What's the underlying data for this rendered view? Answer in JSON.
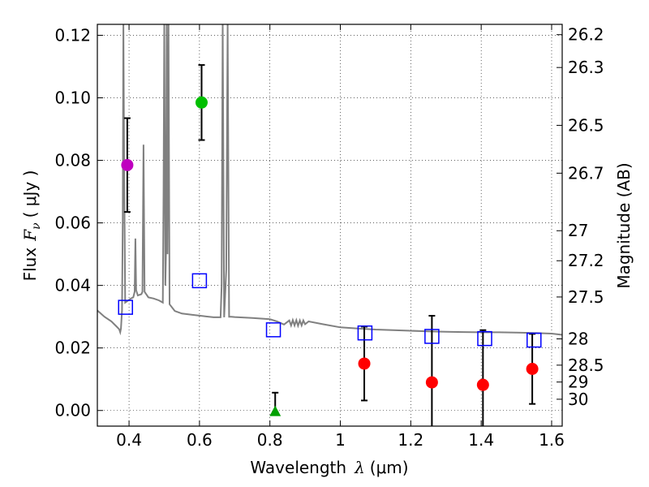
{
  "chart_data": {
    "type": "scatter",
    "xlabel_prefix": "Wavelength",
    "xlabel_symbol": "λ",
    "xlabel_unit": "(μm)",
    "ylabel_prefix": "Flux",
    "ylabel_symbol": "F",
    "ylabel_subscript": "ν",
    "ylabel_unit": "( μJy )",
    "y2label": "Magnitude (AB)",
    "xlim": [
      0.31,
      1.63
    ],
    "ylim": [
      -0.005,
      0.1235
    ],
    "grid": true,
    "x_ticks": [
      {
        "v": 0.4,
        "label": "0.4"
      },
      {
        "v": 0.6,
        "label": "0.6"
      },
      {
        "v": 0.8,
        "label": "0.8"
      },
      {
        "v": 1.0,
        "label": "1"
      },
      {
        "v": 1.2,
        "label": "1.2"
      },
      {
        "v": 1.4,
        "label": "1.4"
      },
      {
        "v": 1.6,
        "label": "1.6"
      }
    ],
    "y_ticks": [
      {
        "v": 0.0,
        "label": "0.00"
      },
      {
        "v": 0.02,
        "label": "0.02"
      },
      {
        "v": 0.04,
        "label": "0.04"
      },
      {
        "v": 0.06,
        "label": "0.06"
      },
      {
        "v": 0.08,
        "label": "0.08"
      },
      {
        "v": 0.1,
        "label": "0.10"
      },
      {
        "v": 0.12,
        "label": "0.12"
      }
    ],
    "mag_ticks": [
      {
        "v": 0.1202,
        "label": "26.2"
      },
      {
        "v": 0.1097,
        "label": "26.3"
      },
      {
        "v": 0.0912,
        "label": "26.5"
      },
      {
        "v": 0.0759,
        "label": "26.7"
      },
      {
        "v": 0.0575,
        "label": "27"
      },
      {
        "v": 0.0479,
        "label": "27.2"
      },
      {
        "v": 0.0363,
        "label": "27.5"
      },
      {
        "v": 0.0229,
        "label": "28"
      },
      {
        "v": 0.0145,
        "label": "28.5"
      },
      {
        "v": 0.0091,
        "label": "29"
      },
      {
        "v": 0.0036,
        "label": "30"
      }
    ],
    "template_color": "#808080",
    "template_spectrum": [
      [
        0.31,
        0.032
      ],
      [
        0.33,
        0.03
      ],
      [
        0.35,
        0.0285
      ],
      [
        0.365,
        0.0268
      ],
      [
        0.372,
        0.026
      ],
      [
        0.375,
        0.025
      ],
      [
        0.377,
        0.0262
      ],
      [
        0.38,
        0.032
      ],
      [
        0.382,
        0.06
      ],
      [
        0.384,
        0.1235
      ],
      [
        0.386,
        0.08
      ],
      [
        0.389,
        0.0345
      ],
      [
        0.395,
        0.035
      ],
      [
        0.405,
        0.0358
      ],
      [
        0.412,
        0.0362
      ],
      [
        0.416,
        0.038
      ],
      [
        0.418,
        0.055
      ],
      [
        0.42,
        0.0385
      ],
      [
        0.425,
        0.0368
      ],
      [
        0.435,
        0.0372
      ],
      [
        0.438,
        0.038
      ],
      [
        0.441,
        0.085
      ],
      [
        0.444,
        0.038
      ],
      [
        0.455,
        0.0362
      ],
      [
        0.47,
        0.0358
      ],
      [
        0.485,
        0.0352
      ],
      [
        0.496,
        0.0345
      ],
      [
        0.498,
        0.07
      ],
      [
        0.5,
        0.1235
      ],
      [
        0.503,
        0.04
      ],
      [
        0.505,
        0.05
      ],
      [
        0.507,
        0.1235
      ],
      [
        0.509,
        0.05
      ],
      [
        0.512,
        0.1235
      ],
      [
        0.515,
        0.034
      ],
      [
        0.53,
        0.0318
      ],
      [
        0.55,
        0.031
      ],
      [
        0.58,
        0.0306
      ],
      [
        0.61,
        0.0302
      ],
      [
        0.64,
        0.0298
      ],
      [
        0.66,
        0.0298
      ],
      [
        0.663,
        0.04
      ],
      [
        0.666,
        0.1235
      ],
      [
        0.67,
        0.0298
      ],
      [
        0.676,
        0.045
      ],
      [
        0.68,
        0.1235
      ],
      [
        0.684,
        0.03
      ],
      [
        0.69,
        0.03
      ],
      [
        0.7,
        0.0299
      ],
      [
        0.75,
        0.0296
      ],
      [
        0.8,
        0.0292
      ],
      [
        0.82,
        0.0285
      ],
      [
        0.84,
        0.0275
      ],
      [
        0.855,
        0.0288
      ],
      [
        0.86,
        0.0272
      ],
      [
        0.865,
        0.0289
      ],
      [
        0.87,
        0.0272
      ],
      [
        0.875,
        0.0289
      ],
      [
        0.88,
        0.0271
      ],
      [
        0.885,
        0.0288
      ],
      [
        0.89,
        0.0272
      ],
      [
        0.895,
        0.0288
      ],
      [
        0.9,
        0.0276
      ],
      [
        0.91,
        0.0285
      ],
      [
        0.95,
        0.0276
      ],
      [
        1.0,
        0.0266
      ],
      [
        1.05,
        0.0262
      ],
      [
        1.1,
        0.0259
      ],
      [
        1.15,
        0.0257
      ],
      [
        1.2,
        0.0255
      ],
      [
        1.25,
        0.0253
      ],
      [
        1.3,
        0.0252
      ],
      [
        1.35,
        0.0251
      ],
      [
        1.4,
        0.025
      ],
      [
        1.45,
        0.025
      ],
      [
        1.5,
        0.0249
      ],
      [
        1.55,
        0.0248
      ],
      [
        1.6,
        0.0246
      ],
      [
        1.63,
        0.0242
      ]
    ],
    "observed": [
      {
        "x": 0.395,
        "y": 0.0785,
        "err": 0.015,
        "color": "#bf00bf"
      },
      {
        "x": 0.606,
        "y": 0.0985,
        "err": 0.012,
        "color": "#00bf00"
      },
      {
        "x": 1.068,
        "y": 0.015,
        "err": 0.0118,
        "color": "#ff0000"
      },
      {
        "x": 1.26,
        "y": 0.009,
        "err": 0.0213,
        "color": "#ff0000"
      },
      {
        "x": 1.405,
        "y": 0.0082,
        "err": 0.0175,
        "color": "#ff0000"
      },
      {
        "x": 1.545,
        "y": 0.0133,
        "err": 0.0112,
        "color": "#ff0000"
      }
    ],
    "upper_limit": {
      "x": 0.815,
      "y": -0.0005,
      "err_top": 0.0062,
      "color": "#00a000"
    },
    "model_photometry": [
      {
        "x": 0.39,
        "y": 0.033
      },
      {
        "x": 0.6,
        "y": 0.0415
      },
      {
        "x": 0.81,
        "y": 0.0258
      },
      {
        "x": 1.07,
        "y": 0.0248
      },
      {
        "x": 1.26,
        "y": 0.0237
      },
      {
        "x": 1.41,
        "y": 0.023
      },
      {
        "x": 1.55,
        "y": 0.0225
      }
    ],
    "model_color": "#0000ff"
  }
}
